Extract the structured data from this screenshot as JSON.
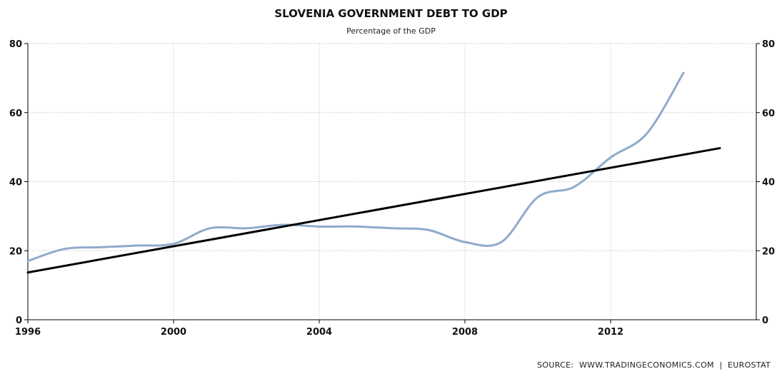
{
  "chart_data": {
    "type": "line",
    "title": "SLOVENIA GOVERNMENT DEBT TO GDP",
    "subtitle": "Percentage of the GDP",
    "xlabel": "",
    "ylabel": "",
    "xlim": [
      1996,
      2016
    ],
    "ylim": [
      0,
      80
    ],
    "x_ticks": [
      1996,
      2000,
      2004,
      2008,
      2012
    ],
    "y_ticks": [
      0,
      20,
      40,
      60,
      80
    ],
    "grid": true,
    "legend": "none",
    "series": [
      {
        "color": "#8faacb",
        "style": "smooth",
        "x": [
          1996,
          1997,
          1998,
          1999,
          2000,
          2001,
          2002,
          2003,
          2004,
          2005,
          2006,
          2007,
          2008,
          2009,
          2010,
          2011,
          2012,
          2013,
          2014
        ],
        "values": [
          17.0,
          20.5,
          21.0,
          21.5,
          22.0,
          26.5,
          26.5,
          27.5,
          27.0,
          27.0,
          26.5,
          26.0,
          22.5,
          22.5,
          35.5,
          38.5,
          47.0,
          54.0,
          71.5
        ]
      },
      {
        "color": "#000000",
        "style": "linear",
        "x": [
          1996,
          2015
        ],
        "values": [
          13.7,
          49.7
        ]
      }
    ]
  },
  "source": {
    "label": "SOURCE:",
    "sites": "WWW.TRADINGECONOMICS.COM",
    "separator": "|",
    "provider": "EUROSTAT"
  }
}
